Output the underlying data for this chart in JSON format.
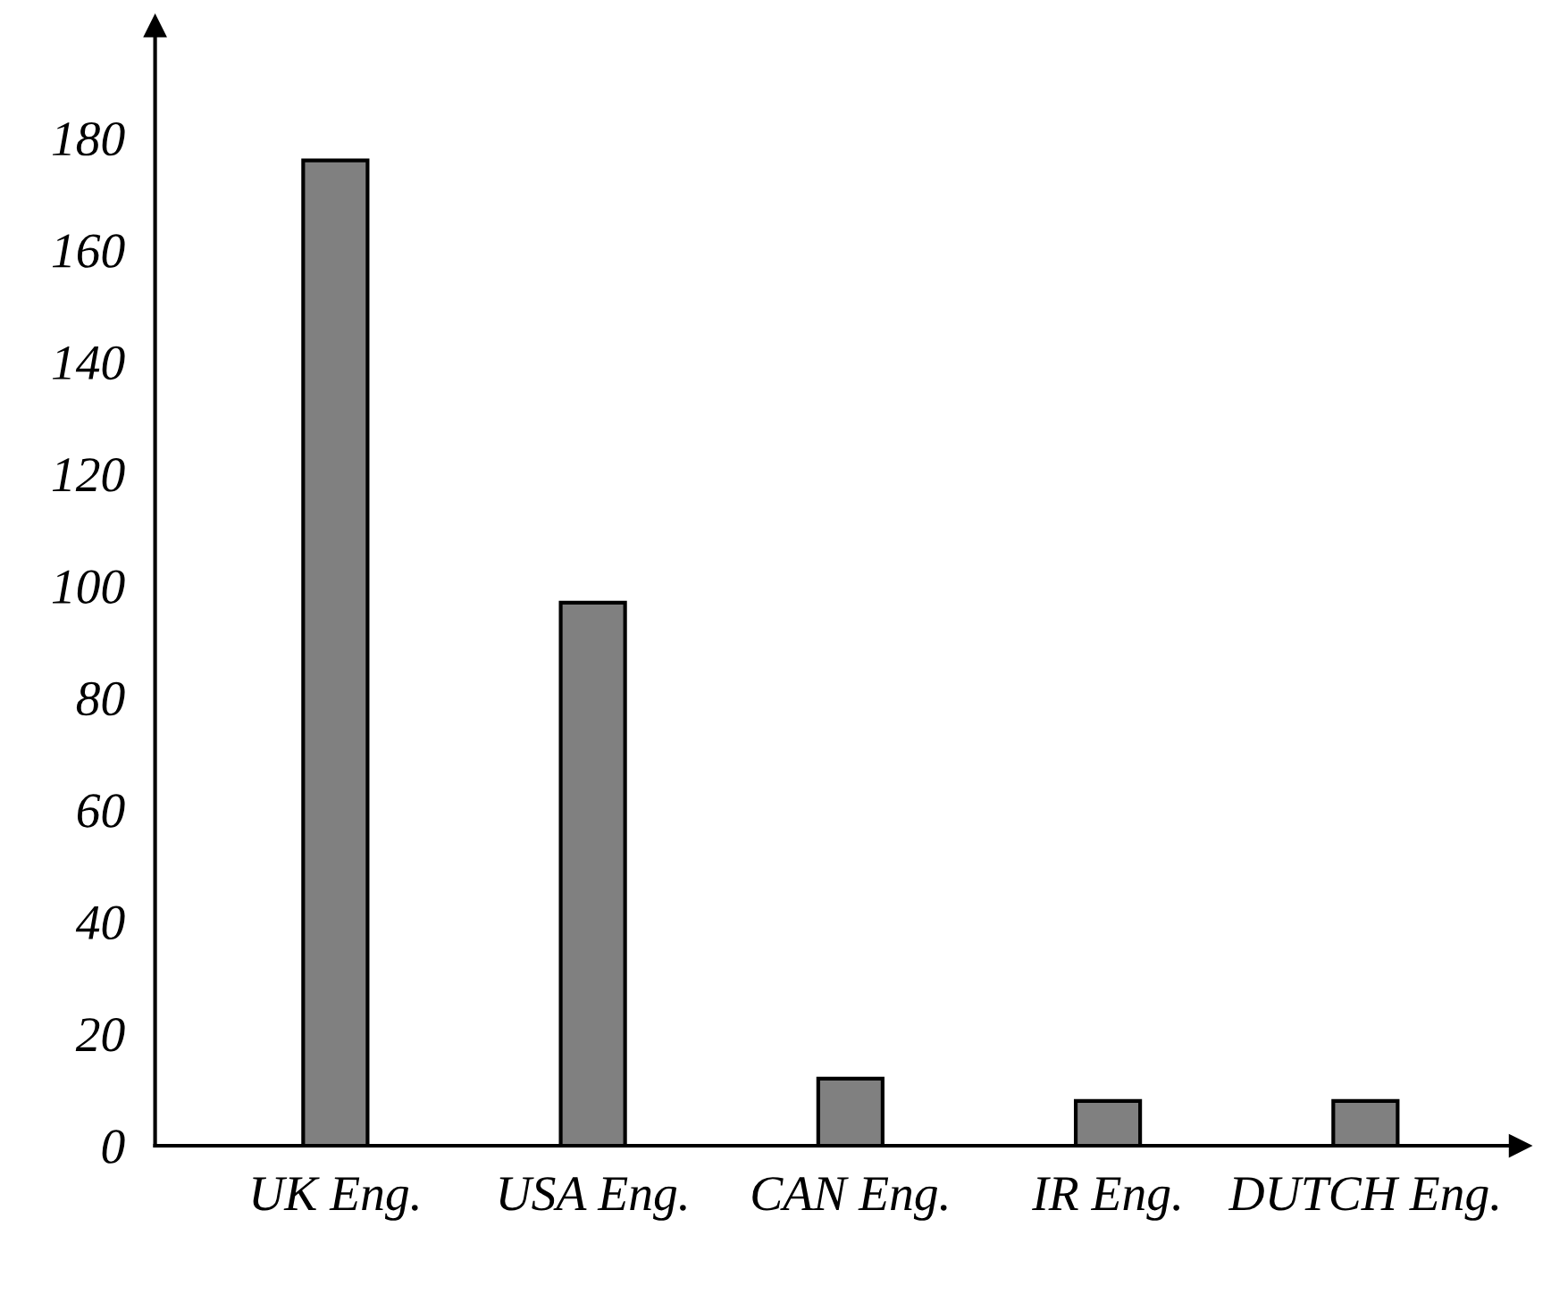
{
  "chart_data": {
    "type": "bar",
    "categories": [
      "UK Eng.",
      "USA Eng.",
      "CAN Eng.",
      "IR Eng.",
      "DUTCH Eng."
    ],
    "values": [
      176,
      97,
      12,
      8,
      8
    ],
    "color": "#808080",
    "ylim": [
      0,
      200
    ],
    "yticks": [
      0,
      20,
      40,
      60,
      80,
      100,
      120,
      140,
      160,
      180
    ],
    "grid": false
  }
}
